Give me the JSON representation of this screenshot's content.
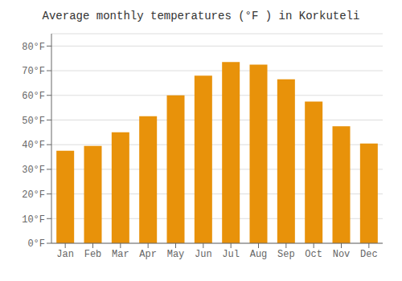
{
  "chart_data": {
    "type": "bar",
    "title": "Average monthly temperatures (°F ) in Korkuteli",
    "categories": [
      "Jan",
      "Feb",
      "Mar",
      "Apr",
      "May",
      "Jun",
      "Jul",
      "Aug",
      "Sep",
      "Oct",
      "Nov",
      "Dec"
    ],
    "values": [
      37.5,
      39.5,
      45.0,
      51.5,
      60.0,
      68.0,
      73.5,
      72.5,
      66.5,
      57.5,
      47.5,
      40.5
    ],
    "color": "#E8920A",
    "ylim": [
      0,
      85
    ],
    "yticks": [
      {
        "value": 0,
        "label": "0°F"
      },
      {
        "value": 10,
        "label": "10°F"
      },
      {
        "value": 20,
        "label": "20°F"
      },
      {
        "value": 30,
        "label": "30°F"
      },
      {
        "value": 40,
        "label": "40°F"
      },
      {
        "value": 50,
        "label": "50°F"
      },
      {
        "value": 60,
        "label": "60°F"
      },
      {
        "value": 70,
        "label": "70°F"
      },
      {
        "value": 80,
        "label": "80°F"
      }
    ],
    "grid": true
  }
}
